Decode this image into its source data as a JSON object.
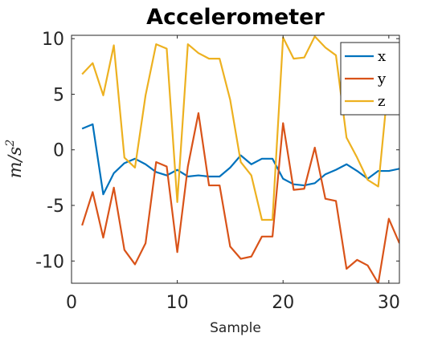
{
  "chart_data": {
    "type": "line",
    "title": "Accelerometer",
    "xlabel": "Sample",
    "ylabel_base": "m/s",
    "ylabel_exp": "2",
    "xlim": [
      0,
      31
    ],
    "ylim": [
      -12,
      10.3
    ],
    "xticks": [
      0,
      10,
      20,
      30
    ],
    "yticks": [
      10,
      5,
      0,
      -5,
      -10
    ],
    "ytick_labels": [
      "10",
      "5",
      "0",
      "-5",
      "-10"
    ],
    "grid": false,
    "legend_position": "top-right",
    "x": [
      1,
      2,
      3,
      4,
      5,
      6,
      7,
      8,
      9,
      10,
      11,
      12,
      13,
      14,
      15,
      16,
      17,
      18,
      19,
      20,
      21,
      22,
      23,
      24,
      25,
      26,
      27,
      28,
      29,
      30,
      31
    ],
    "series": [
      {
        "name": "x",
        "color": "#0072BD",
        "values": [
          1.9,
          2.3,
          -4.0,
          -2.1,
          -1.2,
          -0.8,
          -1.3,
          -2.0,
          -2.3,
          -1.8,
          -2.4,
          -2.3,
          -2.4,
          -2.4,
          -1.6,
          -0.5,
          -1.3,
          -0.8,
          -0.8,
          -2.6,
          -3.1,
          -3.2,
          -3.0,
          -2.2,
          -1.8,
          -1.3,
          -1.9,
          -2.6,
          -1.9,
          -1.9,
          -1.7
        ]
      },
      {
        "name": "y",
        "color": "#D95319",
        "values": [
          -6.8,
          -3.8,
          -7.9,
          -3.4,
          -9.0,
          -10.3,
          -8.4,
          -1.1,
          -1.5,
          -9.2,
          -1.5,
          3.3,
          -3.2,
          -3.2,
          -8.7,
          -9.8,
          -9.6,
          -7.8,
          -7.8,
          2.4,
          -3.6,
          -3.5,
          0.2,
          -4.4,
          -4.6,
          -10.7,
          -9.9,
          -10.4,
          -12.0,
          -6.2,
          -8.4
        ]
      },
      {
        "name": "z",
        "color": "#EDB120",
        "values": [
          6.8,
          7.8,
          4.9,
          9.4,
          -0.7,
          -1.6,
          4.9,
          9.5,
          9.1,
          -4.7,
          9.5,
          8.7,
          8.2,
          8.2,
          4.5,
          -1.1,
          -2.3,
          -6.3,
          -6.3,
          10.1,
          8.2,
          8.3,
          10.2,
          9.2,
          8.5,
          1.1,
          -0.7,
          -2.7,
          -3.3,
          6.5,
          4.0
        ]
      }
    ]
  }
}
